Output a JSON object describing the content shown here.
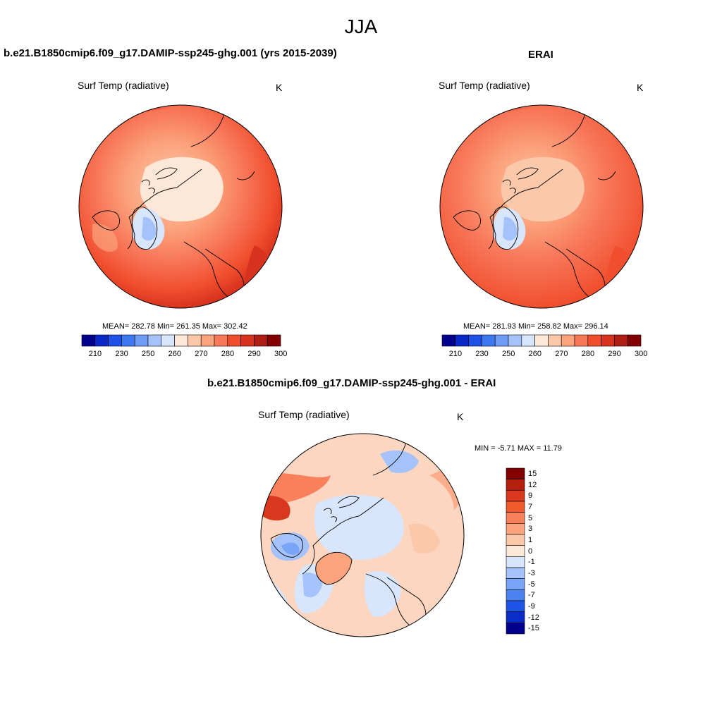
{
  "title": "JJA",
  "panels": [
    {
      "title": "b.e21.B1850cmip6.f09_g17.DAMIP-ssp245-ghg.001 (yrs 2015-2039)",
      "variable": "Surf Temp (radiative)",
      "units": "K",
      "stats_text": "MEAN= 282.78  Min= 261.35  Max= 302.42",
      "mean": 282.78,
      "min": 261.35,
      "max": 302.42
    },
    {
      "title": "ERAI",
      "variable": "Surf Temp (radiative)",
      "units": "K",
      "stats_text": "MEAN= 281.93  Min= 258.82  Max= 296.14",
      "mean": 281.93,
      "min": 258.82,
      "max": 296.14
    },
    {
      "title": "b.e21.B1850cmip6.f09_g17.DAMIP-ssp245-ghg.001 - ERAI",
      "variable": "Surf Temp (radiative)",
      "units": "K",
      "stats_text": "MIN =  -5.71 MAX =  11.79",
      "min": -5.71,
      "max": 11.79
    }
  ],
  "abs_colorbar": {
    "labels": [
      "210",
      "230",
      "250",
      "260",
      "270",
      "280",
      "290",
      "300"
    ],
    "colors": [
      "#00008c",
      "#0a28c8",
      "#1e50e6",
      "#3c78f0",
      "#6e9bf5",
      "#a5c3fa",
      "#d7e6fc",
      "#fde8d8",
      "#fcc8aa",
      "#fba37d",
      "#f8785a",
      "#f04e2d",
      "#d7321e",
      "#af1e14",
      "#820000"
    ]
  },
  "diff_colorbar": {
    "labels": [
      "15",
      "12",
      "9",
      "7",
      "5",
      "3",
      "1",
      "0",
      "-1",
      "-3",
      "-5",
      "-7",
      "-9",
      "-12",
      "-15"
    ],
    "colors": [
      "#820000",
      "#b4200f",
      "#d7381e",
      "#f05a2d",
      "#f8805a",
      "#fba37d",
      "#fcc8aa",
      "#fde8d8",
      "#d7e6fc",
      "#a5c3fa",
      "#78a5f5",
      "#4b82f0",
      "#1e55e6",
      "#0a2dc8",
      "#00008c"
    ]
  },
  "chart_data": [
    {
      "type": "heatmap",
      "title": "b.e21.B1850cmip6.f09_g17.DAMIP-ssp245-ghg.001 (yrs 2015-2039)",
      "projection": "north polar stereographic",
      "variable": "Surf Temp (radiative)",
      "units": "K",
      "levels": [
        210,
        220,
        230,
        240,
        250,
        255,
        260,
        265,
        270,
        275,
        280,
        285,
        290,
        295,
        300
      ],
      "mean": 282.78,
      "min": 261.35,
      "max": 302.42
    },
    {
      "type": "heatmap",
      "title": "ERAI",
      "projection": "north polar stereographic",
      "variable": "Surf Temp (radiative)",
      "units": "K",
      "levels": [
        210,
        220,
        230,
        240,
        250,
        255,
        260,
        265,
        270,
        275,
        280,
        285,
        290,
        295,
        300
      ],
      "mean": 281.93,
      "min": 258.82,
      "max": 296.14
    },
    {
      "type": "heatmap",
      "title": "b.e21.B1850cmip6.f09_g17.DAMIP-ssp245-ghg.001 - ERAI",
      "projection": "north polar stereographic",
      "variable": "Surf Temp (radiative)",
      "units": "K",
      "levels": [
        -15,
        -12,
        -9,
        -7,
        -5,
        -3,
        -1,
        0,
        1,
        3,
        5,
        7,
        9,
        12,
        15
      ],
      "min": -5.71,
      "max": 11.79
    }
  ]
}
